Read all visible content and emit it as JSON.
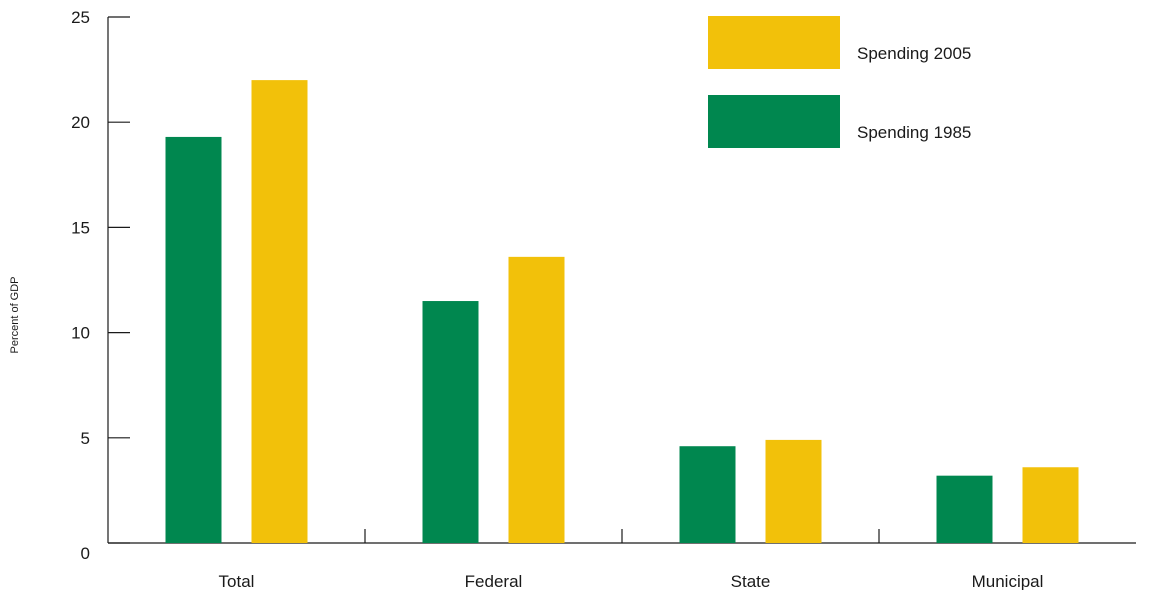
{
  "chart_data": {
    "type": "bar",
    "title": "",
    "xlabel": "",
    "ylabel": "Percent of GDP",
    "ylim": [
      0,
      25
    ],
    "yticks": [
      0,
      5,
      10,
      15,
      20,
      25
    ],
    "categories": [
      "Total",
      "Federal",
      "State",
      "Municipal"
    ],
    "series": [
      {
        "name": "Spending 1985",
        "color": "#00874f",
        "values": [
          19.3,
          11.5,
          4.6,
          3.2
        ]
      },
      {
        "name": "Spending 2005",
        "color": "#f2c10a",
        "values": [
          22.0,
          13.6,
          4.9,
          3.6
        ]
      }
    ],
    "legend": {
      "placement": "top-right",
      "order": [
        "Spending 2005",
        "Spending 1985"
      ]
    },
    "grid": false
  }
}
